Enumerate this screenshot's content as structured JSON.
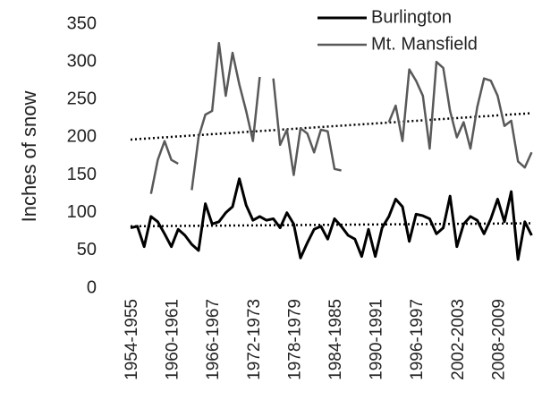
{
  "chart_data": {
    "type": "line",
    "y_label": "Inches of snow",
    "categories": [
      "1954-1955",
      null,
      null,
      null,
      null,
      null,
      "1960-1961",
      null,
      null,
      null,
      null,
      null,
      "1966-1967",
      null,
      null,
      null,
      null,
      null,
      "1972-1973",
      null,
      null,
      null,
      null,
      null,
      "1978-1979",
      null,
      null,
      null,
      null,
      null,
      "1984-1985",
      null,
      null,
      null,
      null,
      null,
      "1990-1991",
      null,
      null,
      null,
      null,
      null,
      "1996-1997",
      null,
      null,
      null,
      null,
      null,
      "2002-2003",
      null,
      null,
      null,
      null,
      null,
      "2008-2009",
      null,
      null,
      null,
      null,
      null
    ],
    "series": [
      {
        "name": "Burlington",
        "color": "#000000",
        "width": 3,
        "values": [
          80,
          82,
          55,
          95,
          88,
          72,
          55,
          78,
          70,
          58,
          50,
          112,
          85,
          88,
          100,
          108,
          145,
          110,
          90,
          95,
          90,
          92,
          80,
          100,
          85,
          40,
          60,
          78,
          82,
          65,
          92,
          82,
          70,
          65,
          42,
          78,
          42,
          80,
          95,
          118,
          108,
          62,
          98,
          96,
          92,
          72,
          80,
          122,
          55,
          85,
          95,
          90,
          72,
          92,
          118,
          88,
          128,
          38,
          88,
          70
        ]
      },
      {
        "name": "Mt. Mansfield",
        "color": "#595959",
        "width": 2.5,
        "values": [
          null,
          null,
          null,
          125,
          170,
          195,
          170,
          165,
          null,
          130,
          200,
          230,
          235,
          325,
          255,
          312,
          270,
          235,
          195,
          280,
          null,
          278,
          190,
          210,
          150,
          212,
          205,
          180,
          210,
          208,
          158,
          156,
          null,
          null,
          null,
          null,
          null,
          null,
          220,
          242,
          195,
          290,
          275,
          255,
          185,
          300,
          292,
          235,
          200,
          220,
          185,
          240,
          278,
          275,
          255,
          215,
          222,
          168,
          160,
          180
        ]
      }
    ],
    "trendlines": [
      [
        82,
        86
      ],
      [
        197,
        232
      ]
    ],
    "trend_color": "#000000",
    "ylim": [
      0,
      350
    ],
    "yticks": [
      0,
      50,
      100,
      150,
      200,
      250,
      300,
      350
    ],
    "grid": false,
    "legend": "top-right"
  }
}
